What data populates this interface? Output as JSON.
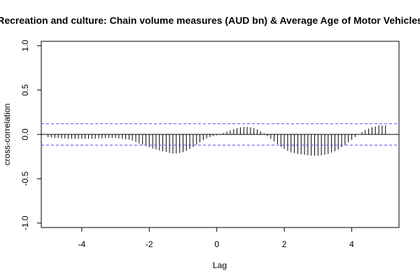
{
  "chart_data": {
    "type": "bar",
    "title": "Recreation and culture: Chain volume measures (AUD bn) & Average Age of Motor Vehicles",
    "xlabel": "Lag",
    "ylabel": "cross-correlation",
    "xlim": [
      -5.2,
      5.4
    ],
    "ylim": [
      -1.05,
      1.05
    ],
    "x_ticks": [
      -4,
      -2,
      0,
      2,
      4
    ],
    "x_tick_labels": [
      "-4",
      "-2",
      "0",
      "2",
      "4"
    ],
    "y_ticks": [
      -1.0,
      -0.5,
      0.0,
      0.5,
      1.0
    ],
    "y_tick_labels": [
      "-1.0",
      "-0.5",
      "0.0",
      "0.5",
      "1.0"
    ],
    "confidence_limit": 0.12,
    "confidence_color": "#4d4dff",
    "lags": [
      -5.0,
      -4.9,
      -4.8,
      -4.7,
      -4.6,
      -4.5,
      -4.4,
      -4.3,
      -4.2,
      -4.1,
      -4.0,
      -3.9,
      -3.8,
      -3.7,
      -3.6,
      -3.5,
      -3.4,
      -3.3,
      -3.2,
      -3.1,
      -3.0,
      -2.9,
      -2.8,
      -2.7,
      -2.6,
      -2.5,
      -2.4,
      -2.3,
      -2.2,
      -2.1,
      -2.0,
      -1.9,
      -1.8,
      -1.7,
      -1.6,
      -1.5,
      -1.4,
      -1.3,
      -1.2,
      -1.1,
      -1.0,
      -0.9,
      -0.8,
      -0.7,
      -0.6,
      -0.5,
      -0.4,
      -0.3,
      -0.2,
      -0.1,
      0.0,
      0.1,
      0.2,
      0.3,
      0.4,
      0.5,
      0.6,
      0.7,
      0.8,
      0.9,
      1.0,
      1.1,
      1.2,
      1.3,
      1.4,
      1.5,
      1.6,
      1.7,
      1.8,
      1.9,
      2.0,
      2.1,
      2.2,
      2.3,
      2.4,
      2.5,
      2.6,
      2.7,
      2.8,
      2.9,
      3.0,
      3.1,
      3.2,
      3.3,
      3.4,
      3.5,
      3.6,
      3.7,
      3.8,
      3.9,
      4.0,
      4.1,
      4.2,
      4.3,
      4.4,
      4.5,
      4.6,
      4.7,
      4.8,
      4.9,
      5.0
    ],
    "values": [
      -0.03,
      -0.035,
      -0.04,
      -0.04,
      -0.045,
      -0.045,
      -0.05,
      -0.05,
      -0.05,
      -0.05,
      -0.05,
      -0.05,
      -0.05,
      -0.05,
      -0.05,
      -0.045,
      -0.045,
      -0.04,
      -0.04,
      -0.04,
      -0.04,
      -0.045,
      -0.05,
      -0.055,
      -0.06,
      -0.07,
      -0.085,
      -0.1,
      -0.115,
      -0.13,
      -0.145,
      -0.16,
      -0.17,
      -0.18,
      -0.19,
      -0.2,
      -0.21,
      -0.215,
      -0.215,
      -0.21,
      -0.2,
      -0.185,
      -0.165,
      -0.14,
      -0.115,
      -0.09,
      -0.065,
      -0.045,
      -0.03,
      -0.02,
      -0.01,
      0.0,
      0.015,
      0.03,
      0.045,
      0.06,
      0.07,
      0.08,
      0.085,
      0.085,
      0.08,
      0.07,
      0.055,
      0.035,
      0.01,
      -0.02,
      -0.05,
      -0.08,
      -0.11,
      -0.14,
      -0.165,
      -0.185,
      -0.2,
      -0.21,
      -0.22,
      -0.225,
      -0.23,
      -0.235,
      -0.24,
      -0.24,
      -0.24,
      -0.235,
      -0.23,
      -0.22,
      -0.205,
      -0.19,
      -0.17,
      -0.145,
      -0.12,
      -0.09,
      -0.06,
      -0.03,
      0.0,
      0.025,
      0.05,
      0.065,
      0.08,
      0.09,
      0.1,
      0.1,
      0.1
    ]
  }
}
